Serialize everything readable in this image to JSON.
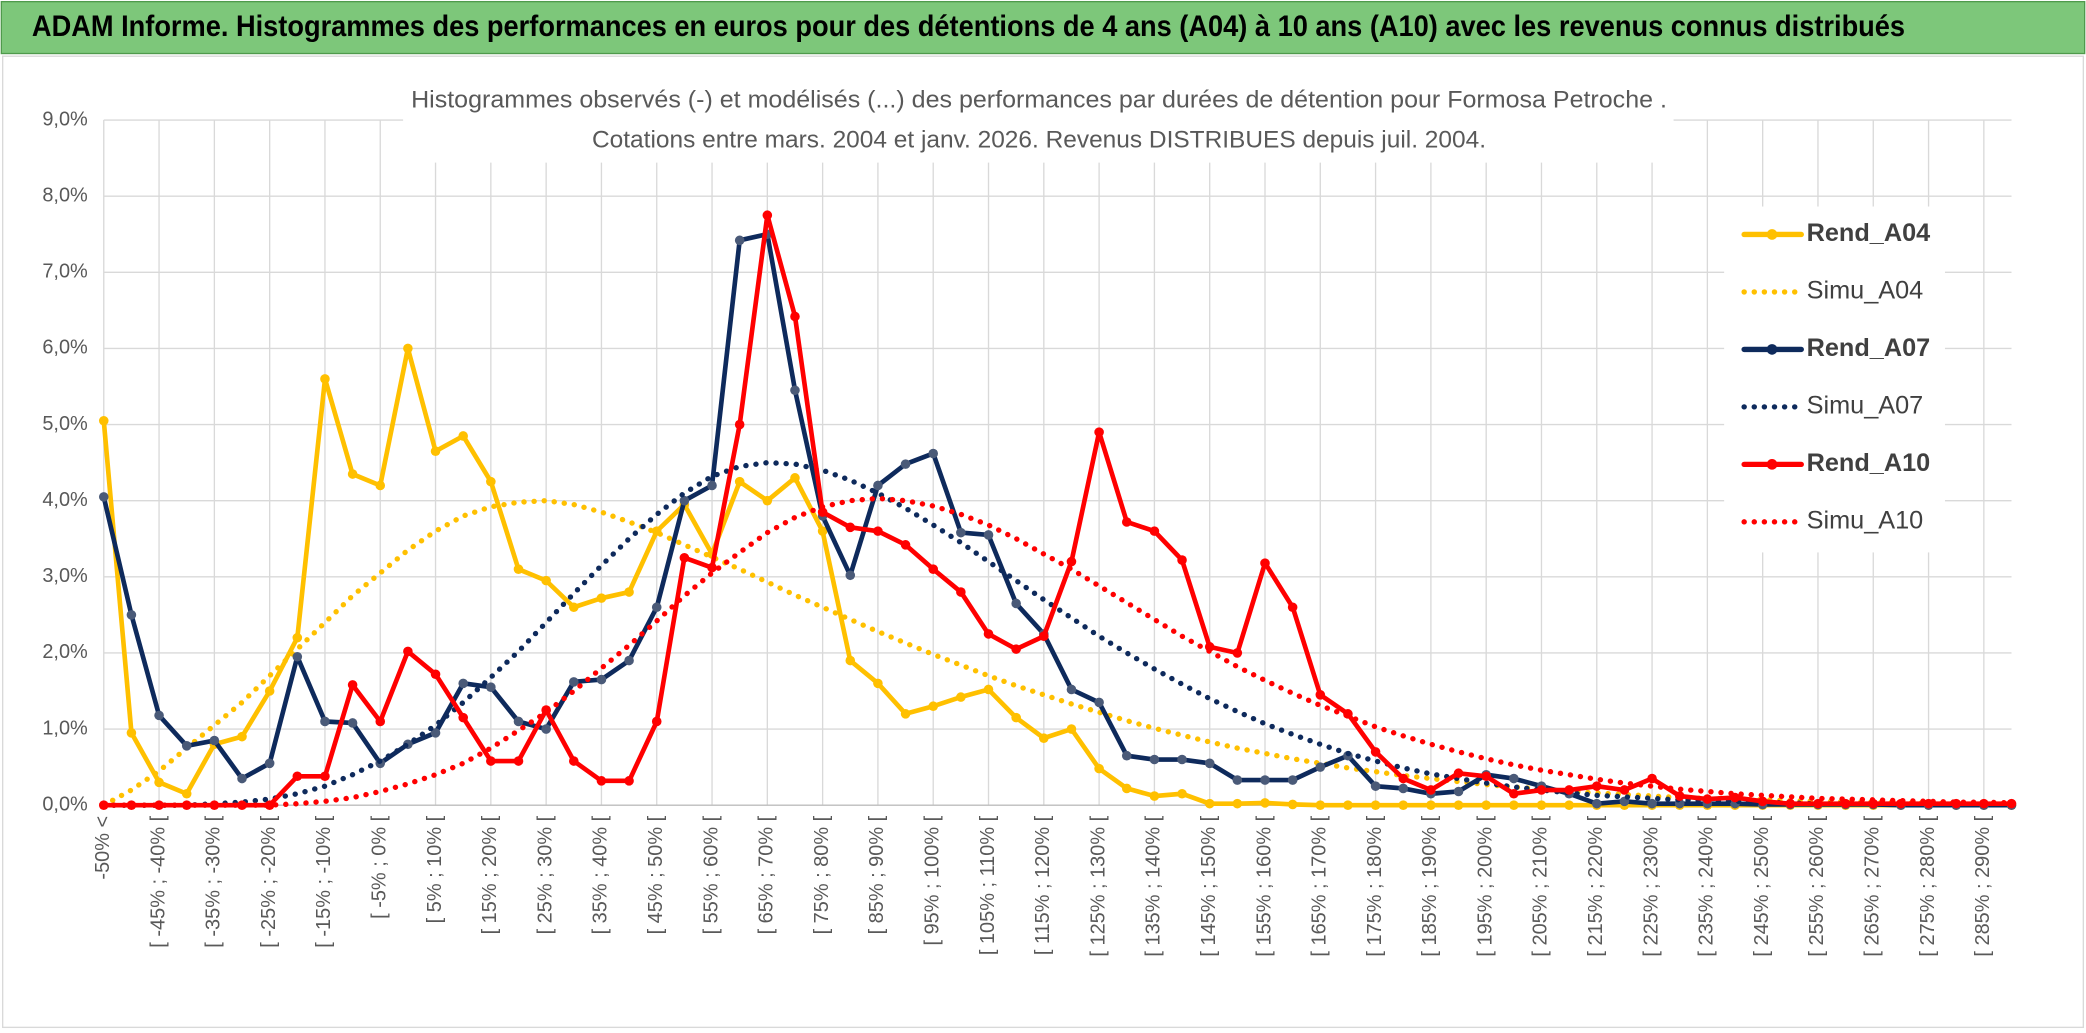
{
  "header": {
    "title": "ADAM Informe. Histogrammes des performances en euros pour des détentions de 4 ans (A04) à 10 ans (A10) avec les revenus connus distribués"
  },
  "chart_data": {
    "type": "line",
    "title": "Histogrammes observés (-) et modélisés (...) des performances par durées de détention pour Formosa Petroche .",
    "subtitle": "Cotations entre mars. 2004 et janv. 2026. Revenus DISTRIBUES depuis juil. 2004.",
    "categories": [
      "-50% <",
      null,
      "[ -45% ; -40% [",
      null,
      "[ -35% ; -30% [",
      null,
      "[ -25% ; -20% [",
      null,
      "[ -15% ; -10% [",
      null,
      "[ -5% ; 0% [",
      null,
      "[ 5% ; 10% [",
      null,
      "[ 15% ; 20% [",
      null,
      "[ 25% ; 30% [",
      null,
      "[ 35% ; 40% [",
      null,
      "[ 45% ; 50% [",
      null,
      "[ 55% ; 60% [",
      null,
      "[ 65% ; 70% [",
      null,
      "[ 75% ; 80% [",
      null,
      "[ 85% ; 90% [",
      null,
      "[ 95% ; 100% [",
      null,
      "[ 105% ; 110% [",
      null,
      "[ 115% ; 120% [",
      null,
      "[ 125% ; 130% [",
      null,
      "[ 135% ; 140% [",
      null,
      "[ 145% ; 150% [",
      null,
      "[ 155% ; 160% [",
      null,
      "[ 165% ; 170% [",
      null,
      "[ 175% ; 180% [",
      null,
      "[ 185% ; 190% [",
      null,
      "[ 195% ; 200% [",
      null,
      "[ 205% ; 210% [",
      null,
      "[ 215% ; 220% [",
      null,
      "[ 225% ; 230% [",
      null,
      "[ 235% ; 240% [",
      null,
      "[ 245% ; 250% [",
      null,
      "[ 255% ; 260% [",
      null,
      "[ 265% ; 270% [",
      null,
      "[ 275% ; 280% [",
      null,
      "[ 285% ; 290% [",
      null
    ],
    "series": [
      {
        "name": "Rend_A04",
        "color": "#ffc000",
        "line_style": "solid",
        "markers": true,
        "values": [
          5.05,
          0.95,
          0.3,
          0.15,
          0.8,
          0.9,
          1.5,
          2.2,
          5.6,
          4.35,
          4.2,
          6.0,
          4.65,
          4.85,
          4.25,
          3.1,
          2.95,
          2.6,
          2.72,
          2.8,
          3.6,
          3.95,
          3.3,
          4.25,
          4.0,
          4.3,
          3.6,
          1.9,
          1.6,
          1.2,
          1.3,
          1.42,
          1.52,
          1.15,
          0.88,
          1.0,
          0.48,
          0.22,
          0.12,
          0.15,
          0.02,
          0.02,
          0.03,
          0.01,
          0,
          0,
          0,
          0,
          0,
          0,
          0,
          0,
          0,
          0,
          0,
          0,
          0,
          0,
          0,
          0,
          0,
          0,
          0,
          0,
          0,
          0,
          0,
          0,
          0,
          0
        ]
      },
      {
        "name": "Simu_A04",
        "color": "#ffc000",
        "line_style": "dotted",
        "markers": false,
        "values": [
          0,
          0.2,
          0.45,
          0.75,
          1.05,
          1.35,
          1.7,
          2.05,
          2.4,
          2.75,
          3.05,
          3.35,
          3.6,
          3.8,
          3.92,
          3.98,
          4.0,
          3.95,
          3.85,
          3.72,
          3.58,
          3.42,
          3.26,
          3.1,
          2.93,
          2.76,
          2.6,
          2.44,
          2.28,
          2.13,
          1.98,
          1.84,
          1.7,
          1.57,
          1.45,
          1.33,
          1.22,
          1.11,
          1.01,
          0.92,
          0.83,
          0.75,
          0.68,
          0.61,
          0.55,
          0.49,
          0.44,
          0.39,
          0.35,
          0.31,
          0.27,
          0.24,
          0.21,
          0.18,
          0.16,
          0.14,
          0.12,
          0.1,
          0.09,
          0.08,
          0.07,
          0.06,
          0.05,
          0.04,
          0.04,
          0.03,
          0.03,
          0.02,
          0.02,
          0.02
        ]
      },
      {
        "name": "Rend_A07",
        "color": "#0e2a5c",
        "line_style": "solid",
        "markers": true,
        "values": [
          4.05,
          2.5,
          1.18,
          0.78,
          0.85,
          0.35,
          0.55,
          1.95,
          1.1,
          1.08,
          0.55,
          0.8,
          0.95,
          1.6,
          1.55,
          1.1,
          1.0,
          1.62,
          1.65,
          1.9,
          2.6,
          4.0,
          4.2,
          7.42,
          7.5,
          5.45,
          3.8,
          3.02,
          4.2,
          4.48,
          4.62,
          3.58,
          3.55,
          2.65,
          2.25,
          1.52,
          1.35,
          0.65,
          0.6,
          0.6,
          0.55,
          0.33,
          0.33,
          0.33,
          0.5,
          0.65,
          0.25,
          0.22,
          0.15,
          0.18,
          0.4,
          0.35,
          0.25,
          0.15,
          0.02,
          0.05,
          0.02,
          0.02,
          0.02,
          0.02,
          0.01,
          0.01,
          0.01,
          0.01,
          0.01,
          0,
          0,
          0,
          0,
          0
        ]
      },
      {
        "name": "Simu_A07",
        "color": "#0e2a5c",
        "line_style": "dotted",
        "markers": false,
        "values": [
          0,
          0,
          0,
          0,
          0.02,
          0.04,
          0.08,
          0.15,
          0.25,
          0.4,
          0.58,
          0.8,
          1.05,
          1.35,
          1.68,
          2.02,
          2.4,
          2.78,
          3.15,
          3.5,
          3.82,
          4.1,
          4.32,
          4.45,
          4.5,
          4.48,
          4.4,
          4.27,
          4.1,
          3.9,
          3.68,
          3.45,
          3.2,
          2.95,
          2.7,
          2.46,
          2.22,
          2.0,
          1.79,
          1.59,
          1.4,
          1.23,
          1.07,
          0.93,
          0.8,
          0.68,
          0.58,
          0.49,
          0.41,
          0.35,
          0.29,
          0.24,
          0.2,
          0.16,
          0.13,
          0.11,
          0.09,
          0.07,
          0.06,
          0.05,
          0.04,
          0.03,
          0.02,
          0.02,
          0.02,
          0.01,
          0.01,
          0.01,
          0.01,
          0.01
        ]
      },
      {
        "name": "Rend_A10",
        "color": "#ff0000",
        "line_style": "solid",
        "markers": true,
        "values": [
          0,
          0,
          0,
          0,
          0,
          0,
          0,
          0.38,
          0.38,
          1.58,
          1.1,
          2.02,
          1.72,
          1.15,
          0.58,
          0.58,
          1.25,
          0.58,
          0.32,
          0.32,
          1.1,
          3.25,
          3.12,
          5.0,
          7.75,
          6.42,
          3.85,
          3.65,
          3.6,
          3.42,
          3.1,
          2.8,
          2.25,
          2.05,
          2.22,
          3.2,
          4.9,
          3.72,
          3.6,
          3.22,
          2.08,
          2.0,
          3.18,
          2.6,
          1.45,
          1.2,
          0.7,
          0.35,
          0.2,
          0.42,
          0.38,
          0.15,
          0.2,
          0.2,
          0.25,
          0.2,
          0.35,
          0.12,
          0.08,
          0.1,
          0.05,
          0.02,
          0.02,
          0.02,
          0.02,
          0.02,
          0.02,
          0.02,
          0.02,
          0.02
        ]
      },
      {
        "name": "Simu_A10",
        "color": "#ff0000",
        "line_style": "dotted",
        "markers": false,
        "values": [
          0,
          0,
          0,
          0,
          0,
          0,
          0,
          0.02,
          0.05,
          0.1,
          0.18,
          0.28,
          0.4,
          0.55,
          0.75,
          0.98,
          1.22,
          1.5,
          1.8,
          2.1,
          2.42,
          2.75,
          3.05,
          3.32,
          3.58,
          3.78,
          3.92,
          4.0,
          4.03,
          4.0,
          3.93,
          3.82,
          3.68,
          3.5,
          3.3,
          3.1,
          2.88,
          2.66,
          2.44,
          2.22,
          2.02,
          1.82,
          1.64,
          1.47,
          1.31,
          1.17,
          1.03,
          0.91,
          0.8,
          0.7,
          0.61,
          0.53,
          0.46,
          0.4,
          0.34,
          0.29,
          0.25,
          0.21,
          0.18,
          0.15,
          0.13,
          0.11,
          0.09,
          0.08,
          0.07,
          0.06,
          0.05,
          0.04,
          0.04,
          0.03
        ]
      }
    ],
    "ylim": [
      0,
      9
    ],
    "yticks": [
      {
        "value": 0,
        "label": "0,0%"
      },
      {
        "value": 1,
        "label": "1,0%"
      },
      {
        "value": 2,
        "label": "2,0%"
      },
      {
        "value": 3,
        "label": "3,0%"
      },
      {
        "value": 4,
        "label": "4,0%"
      },
      {
        "value": 5,
        "label": "5,0%"
      },
      {
        "value": 6,
        "label": "6,0%"
      },
      {
        "value": 7,
        "label": "7,0%"
      },
      {
        "value": 8,
        "label": "8,0%"
      },
      {
        "value": 9,
        "label": "9,0%"
      }
    ],
    "grid": true,
    "legend": "right"
  }
}
